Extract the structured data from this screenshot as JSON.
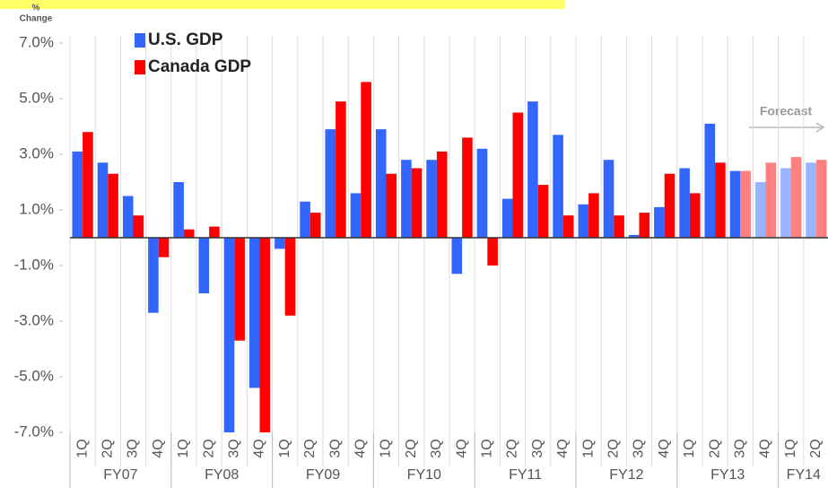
{
  "chart_data": {
    "type": "bar",
    "y_axis_label": [
      "%",
      "Change"
    ],
    "categories": [
      "1Q",
      "2Q",
      "3Q",
      "4Q",
      "1Q",
      "2Q",
      "3Q",
      "4Q",
      "1Q",
      "2Q",
      "3Q",
      "4Q",
      "1Q",
      "2Q",
      "3Q",
      "4Q",
      "1Q",
      "2Q",
      "3Q",
      "4Q",
      "1Q",
      "2Q",
      "3Q",
      "4Q",
      "1Q",
      "2Q",
      "3Q",
      "4Q",
      "1Q",
      "2Q"
    ],
    "groups": [
      "FY07",
      "FY08",
      "FY09",
      "FY10",
      "FY11",
      "FY12",
      "FY13",
      "FY14"
    ],
    "group_sizes": [
      4,
      4,
      4,
      4,
      4,
      4,
      4,
      2
    ],
    "series": [
      {
        "name": "U.S. GDP",
        "color": "#3366ff",
        "colors": [
          "#3366ff",
          "#3366ff",
          "#3366ff",
          "#3366ff",
          "#3366ff",
          "#3366ff",
          "#3366ff",
          "#3366ff",
          "#3366ff",
          "#3366ff",
          "#3366ff",
          "#3366ff",
          "#3366ff",
          "#3366ff",
          "#3366ff",
          "#3366ff",
          "#3366ff",
          "#3366ff",
          "#3366ff",
          "#3366ff",
          "#3366ff",
          "#3366ff",
          "#3366ff",
          "#3366ff",
          "#3366ff",
          "#3366ff",
          "#3366ff",
          "#99b3ff",
          "#99b3ff",
          "#99b3ff"
        ],
        "values": [
          3.1,
          2.7,
          1.5,
          -2.7,
          2.0,
          -2.0,
          -7.0,
          -5.4,
          -0.4,
          1.3,
          3.9,
          1.6,
          3.9,
          2.8,
          2.8,
          -1.3,
          3.2,
          1.4,
          4.9,
          3.7,
          1.2,
          2.8,
          0.1,
          1.1,
          2.5,
          4.1,
          2.4,
          2.0,
          2.5,
          2.7
        ]
      },
      {
        "name": "Canada GDP",
        "color": "#ff0000",
        "colors": [
          "#ff0000",
          "#ff0000",
          "#ff0000",
          "#ff0000",
          "#ff0000",
          "#ff0000",
          "#ff0000",
          "#ff0000",
          "#ff0000",
          "#ff0000",
          "#ff0000",
          "#ff0000",
          "#ff0000",
          "#ff0000",
          "#ff0000",
          "#ff0000",
          "#ff0000",
          "#ff0000",
          "#ff0000",
          "#ff0000",
          "#ff0000",
          "#ff0000",
          "#ff0000",
          "#ff0000",
          "#ff0000",
          "#ff0000",
          "#ff8080",
          "#ff8080",
          "#ff8080",
          "#ff8080"
        ],
        "values": [
          3.8,
          2.3,
          0.8,
          -0.7,
          0.3,
          0.4,
          -3.7,
          -7.0,
          -2.8,
          0.9,
          4.9,
          5.6,
          2.3,
          2.5,
          3.1,
          3.6,
          -1.0,
          4.5,
          1.9,
          0.8,
          1.6,
          0.8,
          0.9,
          2.3,
          1.6,
          2.7,
          2.4,
          2.7,
          2.9,
          2.8
        ]
      }
    ],
    "ylim": [
      -7,
      7
    ],
    "yticks": [
      {
        "value": 7,
        "label": "7.0%"
      },
      {
        "value": 5,
        "label": "5.0%"
      },
      {
        "value": 3,
        "label": "3.0%"
      },
      {
        "value": 1,
        "label": "1.0%"
      },
      {
        "value": -1,
        "label": "-1.0%"
      },
      {
        "value": -3,
        "label": "-3.0%"
      },
      {
        "value": -5,
        "label": "-5.0%"
      },
      {
        "value": -7,
        "label": "-7.0%"
      }
    ],
    "annotation": "Forecast",
    "legend": "top-left"
  }
}
